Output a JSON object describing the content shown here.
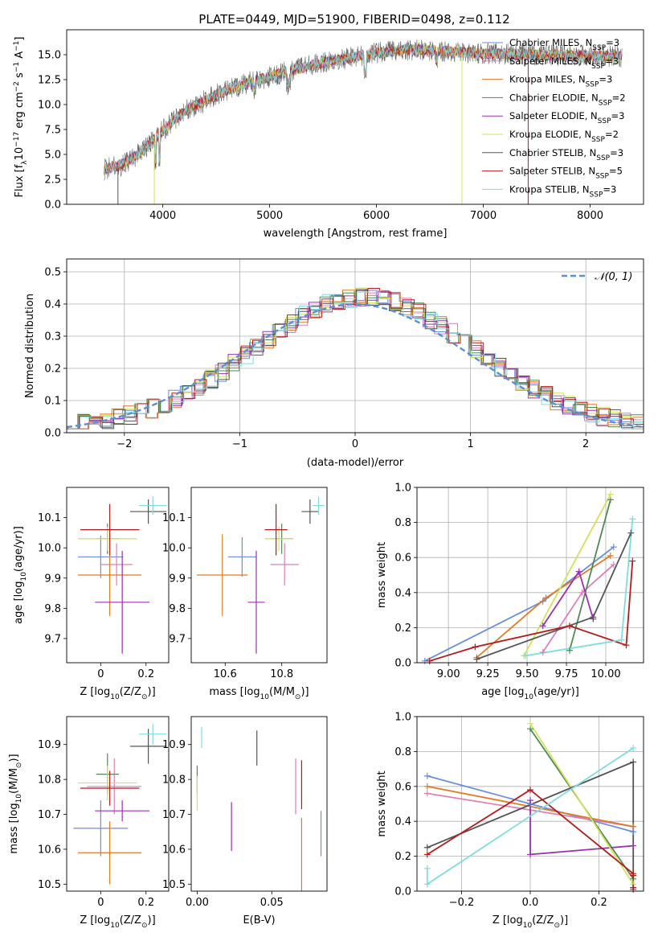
{
  "colors": {
    "Chabrier MILES": "#6a8fdb",
    "Salpeter MILES": "#e07fb8",
    "Kroupa MILES": "#e07b23",
    "Chabrier ELODIE": "#4f8a55",
    "Salpeter ELODIE": "#9b30b0",
    "Kroupa ELODIE": "#d4e25a",
    "Chabrier STELIB": "#545454",
    "Salpeter STELIB": "#b51b1b",
    "Kroupa STELIB": "#7fdde0",
    "gauss": "#5b8fd6"
  },
  "chart_data": [
    {
      "id": "spectrum",
      "type": "line",
      "title": "PLATE=0449, MJD=51900, FIBERID=0498, z=0.112",
      "xlabel": "wavelength [Angstrom, rest frame]",
      "ylabel_main": "Flux [f",
      "ylabel_sub": "λ",
      "ylabel_rest": "10",
      "ylabel_exp1": "−17",
      "ylabel_mid": " erg cm",
      "ylabel_exp2": "−2",
      "ylabel_mid2": " s",
      "ylabel_exp3": "−1",
      "ylabel_mid3": " A",
      "ylabel_exp4": "−1",
      "ylabel_end": "]",
      "xlim": [
        3100,
        8500
      ],
      "ylim": [
        0,
        17.5
      ],
      "xticks": [
        4000,
        5000,
        6000,
        7000,
        8000
      ],
      "yticks": [
        0.0,
        2.5,
        5.0,
        7.5,
        10.0,
        12.5,
        15.0
      ],
      "continuum": [
        [
          3450,
          3.5
        ],
        [
          3600,
          3.9
        ],
        [
          3800,
          5.2
        ],
        [
          4000,
          7.4
        ],
        [
          4200,
          9.3
        ],
        [
          4500,
          11.0
        ],
        [
          4800,
          12.2
        ],
        [
          5000,
          12.8
        ],
        [
          5200,
          13.4
        ],
        [
          5500,
          14.2
        ],
        [
          5800,
          14.8
        ],
        [
          6000,
          15.2
        ],
        [
          6300,
          15.5
        ],
        [
          6600,
          15.4
        ],
        [
          7000,
          15.1
        ],
        [
          7500,
          15.0
        ],
        [
          8000,
          14.9
        ],
        [
          8300,
          14.8
        ]
      ],
      "series": [
        {
          "name": "Chabrier MILES",
          "nssp": "3"
        },
        {
          "name": "Salpeter MILES",
          "nssp": "3"
        },
        {
          "name": "Kroupa MILES",
          "nssp": "3"
        },
        {
          "name": "Chabrier ELODIE",
          "nssp": "2"
        },
        {
          "name": "Salpeter ELODIE",
          "nssp": "3"
        },
        {
          "name": "Kroupa ELODIE",
          "nssp": "2"
        },
        {
          "name": "Chabrier STELIB",
          "nssp": "3"
        },
        {
          "name": "Salpeter STELIB",
          "nssp": "5"
        },
        {
          "name": "Kroupa STELIB",
          "nssp": "3"
        }
      ],
      "legend_prefix": "N",
      "legend_sub": "SSP",
      "legend_placement": "right"
    },
    {
      "id": "residuals",
      "type": "histogram",
      "xlabel": "(data-model)/error",
      "ylabel": "Normed distribution",
      "xlim": [
        -2.5,
        2.5
      ],
      "ylim": [
        0,
        0.54
      ],
      "xticks": [
        -2,
        -1,
        0,
        1,
        2
      ],
      "xticklabels": [
        "−2",
        "−1",
        "0",
        "1",
        "2"
      ],
      "yticks": [
        0.0,
        0.1,
        0.2,
        0.3,
        0.4,
        0.5
      ],
      "bin_width": 0.1,
      "gaussian_label": "𝒩(0, 1)",
      "legend_placement": "top-right",
      "grid": true
    },
    {
      "id": "age_vs_Z",
      "type": "errorbar",
      "xlabel": "Z [log",
      "xlabel_sub": "10",
      "xlabel_rest": "(Z/Z",
      "xlabel_sun": "⊙",
      "xlabel_end": ")]",
      "ylabel": "age  [log",
      "ylabel_sub": "10",
      "ylabel_rest": "(age/yr)]",
      "xlim": [
        -0.15,
        0.3
      ],
      "ylim": [
        9.62,
        10.2
      ],
      "xticks": [
        0.0,
        0.2
      ],
      "yticks": [
        9.7,
        9.8,
        9.9,
        10.0,
        10.1
      ],
      "points": [
        {
          "series": "Chabrier MILES",
          "x": 0.0,
          "xerr": 0.1,
          "y": 9.97,
          "yerr": 0.07
        },
        {
          "series": "Salpeter MILES",
          "x": 0.07,
          "xerr": 0.07,
          "y": 9.945,
          "yerr": 0.07
        },
        {
          "series": "Kroupa MILES",
          "x": 0.04,
          "xerr": 0.14,
          "y": 9.91,
          "yerr": 0.135
        },
        {
          "series": "Chabrier ELODIE",
          "x": 0.03,
          "xerr": 0.05,
          "y": 10.03,
          "yerr": 0.05
        },
        {
          "series": "Salpeter ELODIE",
          "x": 0.095,
          "xerr": 0.12,
          "y": 9.82,
          "yerr": 0.17
        },
        {
          "series": "Kroupa ELODIE",
          "x": 0.03,
          "xerr": 0.13,
          "y": 10.03,
          "yerr": 0.04
        },
        {
          "series": "Chabrier STELIB",
          "x": 0.21,
          "xerr": 0.08,
          "y": 10.12,
          "yerr": 0.04
        },
        {
          "series": "Salpeter STELIB",
          "x": 0.04,
          "xerr": 0.13,
          "y": 10.06,
          "yerr": 0.085
        },
        {
          "series": "Kroupa STELIB",
          "x": 0.23,
          "xerr": 0.06,
          "y": 10.14,
          "yerr": 0.03
        }
      ]
    },
    {
      "id": "age_vs_mass",
      "type": "errorbar",
      "xlabel": "mass [log",
      "xlabel_sub": "10",
      "xlabel_rest": "(M/M",
      "xlabel_sun": "⊙",
      "xlabel_end": ")]",
      "xlim": [
        10.48,
        10.96
      ],
      "ylim": [
        9.62,
        10.2
      ],
      "xticks": [
        10.6,
        10.8
      ],
      "yticks": [
        9.7,
        9.8,
        9.9,
        10.0,
        10.1
      ],
      "points": [
        {
          "series": "Chabrier MILES",
          "x": 10.66,
          "xerr": 0.05,
          "y": 9.97,
          "yerr": 0.065
        },
        {
          "series": "Salpeter MILES",
          "x": 10.81,
          "xerr": 0.05,
          "y": 9.945,
          "yerr": 0.07
        },
        {
          "series": "Kroupa MILES",
          "x": 10.59,
          "xerr": 0.09,
          "y": 9.91,
          "yerr": 0.135
        },
        {
          "series": "Chabrier ELODIE",
          "x": 10.8,
          "xerr": 0.04,
          "y": 10.03,
          "yerr": 0.05
        },
        {
          "series": "Salpeter ELODIE",
          "x": 10.71,
          "xerr": 0.03,
          "y": 9.82,
          "yerr": 0.17
        },
        {
          "series": "Kroupa ELODIE",
          "x": 10.79,
          "xerr": 0.05,
          "y": 10.03,
          "yerr": 0.04
        },
        {
          "series": "Chabrier STELIB",
          "x": 10.9,
          "xerr": 0.03,
          "y": 10.12,
          "yerr": 0.04
        },
        {
          "series": "Salpeter STELIB",
          "x": 10.78,
          "xerr": 0.04,
          "y": 10.06,
          "yerr": 0.085
        },
        {
          "series": "Kroupa STELIB",
          "x": 10.93,
          "xerr": 0.02,
          "y": 10.14,
          "yerr": 0.03
        }
      ]
    },
    {
      "id": "weight_vs_age",
      "type": "line",
      "xlabel": "age  [log",
      "xlabel_sub": "10",
      "xlabel_rest": "(age/yr)]",
      "ylabel": "mass weight",
      "xlim": [
        8.8,
        10.24
      ],
      "ylim": [
        0,
        1.0
      ],
      "xticks": [
        9.0,
        9.25,
        9.5,
        9.75,
        10.0
      ],
      "xticklabels": [
        "9.00",
        "9.25",
        "9.50",
        "9.75",
        "10.00"
      ],
      "yticks": [
        0.0,
        0.2,
        0.4,
        0.6,
        0.8,
        1.0
      ],
      "grid": true,
      "series": [
        {
          "name": "Chabrier MILES",
          "x": [
            8.85,
            9.6,
            10.05
          ],
          "y": [
            0.01,
            0.35,
            0.66
          ]
        },
        {
          "name": "Salpeter MILES",
          "x": [
            9.6,
            9.85,
            10.05
          ],
          "y": [
            0.06,
            0.4,
            0.56
          ]
        },
        {
          "name": "Kroupa MILES",
          "x": [
            9.18,
            9.62,
            10.03
          ],
          "y": [
            0.03,
            0.37,
            0.61
          ]
        },
        {
          "name": "Chabrier ELODIE",
          "x": [
            9.77,
            10.03
          ],
          "y": [
            0.07,
            0.93
          ]
        },
        {
          "name": "Salpeter ELODIE",
          "x": [
            9.6,
            9.83,
            9.92
          ],
          "y": [
            0.21,
            0.52,
            0.25
          ]
        },
        {
          "name": "Kroupa ELODIE",
          "x": [
            9.48,
            10.03
          ],
          "y": [
            0.04,
            0.96
          ]
        },
        {
          "name": "Chabrier STELIB",
          "x": [
            9.18,
            9.92,
            10.16
          ],
          "y": [
            0.02,
            0.26,
            0.74
          ]
        },
        {
          "name": "Salpeter STELIB",
          "x": [
            8.88,
            9.17,
            9.77,
            10.13,
            10.17
          ],
          "y": [
            0.01,
            0.09,
            0.21,
            0.1,
            0.58
          ]
        },
        {
          "name": "Kroupa STELIB",
          "x": [
            9.49,
            10.1,
            10.17
          ],
          "y": [
            0.04,
            0.13,
            0.82
          ]
        }
      ]
    },
    {
      "id": "mass_vs_Z",
      "type": "errorbar",
      "xlabel": "Z [log",
      "xlabel_sub": "10",
      "xlabel_rest": "(Z/Z",
      "xlabel_sun": "⊙",
      "xlabel_end": ")]",
      "ylabel": "mass [log",
      "ylabel_sub": "10",
      "ylabel_rest": "(M/M",
      "ylabel_sun": "⊙",
      "ylabel_end": ")]",
      "xlim": [
        -0.15,
        0.3
      ],
      "ylim": [
        10.48,
        10.98
      ],
      "xticks": [
        0.0,
        0.2
      ],
      "yticks": [
        10.5,
        10.6,
        10.7,
        10.8,
        10.9
      ],
      "points": [
        {
          "series": "Chabrier MILES",
          "x": 0.0,
          "xerr": 0.12,
          "y": 10.66,
          "yerr": 0.08
        },
        {
          "series": "Salpeter MILES",
          "x": 0.06,
          "xerr": 0.12,
          "y": 10.78,
          "yerr": 0.08
        },
        {
          "series": "Kroupa MILES",
          "x": 0.04,
          "xerr": 0.14,
          "y": 10.59,
          "yerr": 0.09
        },
        {
          "series": "Chabrier ELODIE",
          "x": 0.03,
          "xerr": 0.05,
          "y": 10.815,
          "yerr": 0.06
        },
        {
          "series": "Salpeter ELODIE",
          "x": 0.095,
          "xerr": 0.12,
          "y": 10.71,
          "yerr": 0.03
        },
        {
          "series": "Kroupa ELODIE",
          "x": 0.03,
          "xerr": 0.13,
          "y": 10.79,
          "yerr": 0.05
        },
        {
          "series": "Chabrier STELIB",
          "x": 0.21,
          "xerr": 0.08,
          "y": 10.895,
          "yerr": 0.05
        },
        {
          "series": "Salpeter STELIB",
          "x": 0.04,
          "xerr": 0.13,
          "y": 10.775,
          "yerr": 0.05
        },
        {
          "series": "Kroupa STELIB",
          "x": 0.23,
          "xerr": 0.06,
          "y": 10.93,
          "yerr": 0.03
        }
      ]
    },
    {
      "id": "mass_vs_EBV",
      "type": "errorbar",
      "xlabel": "E(B-V)",
      "xlim": [
        -0.004,
        0.087
      ],
      "ylim": [
        10.48,
        10.98
      ],
      "xticks": [
        0.0,
        0.05
      ],
      "xticklabels": [
        "0.00",
        "0.05"
      ],
      "yticks": [
        10.5,
        10.6,
        10.7,
        10.8,
        10.9
      ],
      "points": [
        {
          "series": "Chabrier MILES",
          "x": 0.083,
          "y": 10.645,
          "yerr": 0.065
        },
        {
          "series": "Salpeter MILES",
          "x": 0.066,
          "y": 10.78,
          "yerr": 0.08
        },
        {
          "series": "Kroupa MILES",
          "x": 0.07,
          "y": 10.58,
          "yerr": 0.11
        },
        {
          "series": "Chabrier ELODIE",
          "x": 0.0,
          "y": 10.8,
          "yerr": 0.04
        },
        {
          "series": "Salpeter ELODIE",
          "x": 0.023,
          "y": 10.665,
          "yerr": 0.07
        },
        {
          "series": "Kroupa ELODIE",
          "x": 0.0,
          "y": 10.76,
          "yerr": 0.05
        },
        {
          "series": "Chabrier STELIB",
          "x": 0.04,
          "y": 10.89,
          "yerr": 0.05
        },
        {
          "series": "Salpeter STELIB",
          "x": 0.07,
          "y": 10.785,
          "yerr": 0.07
        },
        {
          "series": "Kroupa STELIB",
          "x": 0.003,
          "y": 10.92,
          "yerr": 0.03
        }
      ]
    },
    {
      "id": "weight_vs_Z",
      "type": "line",
      "xlabel": "Z [log",
      "xlabel_sub": "10",
      "xlabel_rest": "(Z/Z",
      "xlabel_sun": "⊙",
      "xlabel_end": ")]",
      "ylabel": "mass weight",
      "xlim": [
        -0.33,
        0.33
      ],
      "ylim": [
        0,
        1.0
      ],
      "xticks": [
        -0.2,
        0.0,
        0.2
      ],
      "xticklabels": [
        "−0.2",
        "0.0",
        "0.2"
      ],
      "yticks": [
        0.0,
        0.2,
        0.4,
        0.6,
        0.8,
        1.0
      ],
      "grid": true,
      "series": [
        {
          "name": "Chabrier MILES",
          "x": [
            -0.3,
            0.0,
            0.3
          ],
          "y": [
            0.66,
            0.5,
            0.34
          ]
        },
        {
          "name": "Salpeter MILES",
          "x": [
            -0.3,
            0.3
          ],
          "y": [
            0.56,
            0.37
          ]
        },
        {
          "name": "Kroupa MILES",
          "x": [
            -0.3,
            0.3
          ],
          "y": [
            0.6,
            0.37
          ]
        },
        {
          "name": "Chabrier ELODIE",
          "x": [
            0.0,
            0.3
          ],
          "y": [
            0.93,
            0.07
          ]
        },
        {
          "name": "Salpeter ELODIE",
          "x": [
            0.0,
            0.0,
            0.3
          ],
          "y": [
            0.52,
            0.21,
            0.26
          ]
        },
        {
          "name": "Kroupa ELODIE",
          "x": [
            0.0,
            0.3
          ],
          "y": [
            0.96,
            0.04
          ]
        },
        {
          "name": "Chabrier STELIB",
          "x": [
            -0.3,
            0.3,
            0.3
          ],
          "y": [
            0.25,
            0.74,
            0.01
          ]
        },
        {
          "name": "Salpeter STELIB",
          "x": [
            -0.3,
            0.0,
            0.3,
            0.3,
            0.3
          ],
          "y": [
            0.21,
            0.58,
            0.1,
            0.09,
            0.02
          ]
        },
        {
          "name": "Kroupa STELIB",
          "x": [
            -0.3,
            -0.3,
            0.3
          ],
          "y": [
            0.13,
            0.04,
            0.82
          ]
        }
      ]
    }
  ]
}
